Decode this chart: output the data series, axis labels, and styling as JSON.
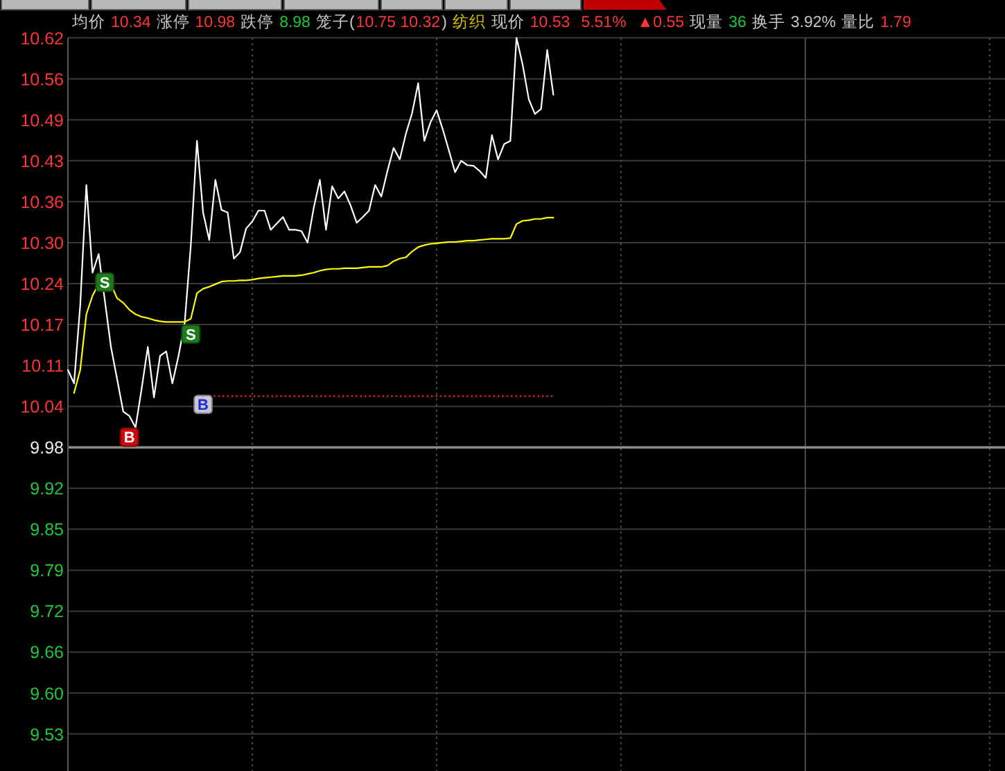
{
  "chart_data": {
    "type": "line",
    "annotations": [
      "均价",
      "10.34",
      "涨停",
      "10.98",
      "跌停",
      "8.98",
      "笼子(",
      "10.75 10.32",
      ")",
      "纺织",
      "现价",
      "10.53",
      "5.51%",
      "▲0.55",
      "现量",
      "36",
      "换手",
      "3.92%",
      "量比",
      "1.79"
    ],
    "categories": [
      null,
      null,
      null,
      null,
      null,
      null,
      null,
      null,
      null,
      null,
      null,
      null,
      null,
      null,
      null,
      null,
      null,
      null,
      null,
      null,
      null,
      null,
      null,
      null,
      null,
      null,
      null,
      null,
      null,
      null,
      null,
      null,
      null,
      null,
      null,
      null,
      null,
      null,
      null,
      null,
      null,
      null,
      null,
      null,
      null,
      null,
      null,
      null,
      null,
      null,
      null,
      null,
      null,
      null,
      null,
      null,
      null,
      null,
      null,
      null,
      null,
      null,
      null,
      null,
      null,
      null,
      null,
      null,
      null,
      null,
      null,
      null,
      null,
      null,
      null,
      null,
      null,
      null,
      null,
      null,
      null,
      null,
      null,
      null,
      null,
      null,
      null,
      null,
      null,
      null,
      null,
      null,
      null,
      null,
      null,
      null,
      null,
      null,
      null,
      null,
      null,
      null,
      null,
      null,
      null,
      null,
      null,
      null,
      null,
      null,
      null,
      null,
      null,
      null,
      null,
      null,
      null,
      null,
      null,
      null,
      null,
      null,
      null,
      null,
      null,
      null,
      null,
      null,
      null,
      null,
      null,
      null,
      null,
      null,
      null,
      null,
      null,
      null,
      null,
      null,
      null,
      null,
      null,
      null,
      null,
      null,
      null,
      null,
      null,
      null,
      null,
      null,
      null
    ],
    "series": [
      {
        "color": "#ffffff",
        "values": [
          10.101,
          10.08,
          10.202,
          10.39,
          10.253,
          10.282,
          10.21,
          10.137,
          10.087,
          10.036,
          10.029,
          10.011,
          10.072,
          10.137,
          10.058,
          10.123,
          10.13,
          10.08,
          10.123,
          10.174,
          10.296,
          10.459,
          10.347,
          10.304,
          10.398,
          10.351,
          10.347,
          10.275,
          10.285,
          10.322,
          10.333,
          10.35,
          10.35,
          10.32,
          10.33,
          10.34,
          10.32,
          10.32,
          10.318,
          10.3,
          10.354,
          10.398,
          10.32,
          10.388,
          10.369,
          10.38,
          10.358,
          10.331,
          10.34,
          10.35,
          10.39,
          10.372,
          10.412,
          10.448,
          10.43,
          10.47,
          10.502,
          10.549,
          10.459,
          10.488,
          10.507,
          10.477,
          10.444,
          10.41,
          10.428,
          10.421,
          10.42,
          10.412,
          10.401,
          10.468,
          10.43,
          10.454,
          10.459,
          10.62,
          10.578,
          10.524,
          10.501,
          10.509,
          10.601,
          10.531,
          null,
          null,
          null,
          null,
          null,
          null,
          null,
          null,
          null,
          null,
          null,
          null,
          null,
          null,
          null,
          null,
          null,
          null,
          null,
          null,
          null,
          null,
          null,
          null,
          null,
          null,
          null,
          null,
          null,
          null,
          null,
          null,
          null,
          null,
          null,
          null,
          null,
          null,
          null,
          null,
          null,
          null,
          null,
          null,
          null,
          null,
          null,
          null,
          null,
          null,
          null,
          null,
          null,
          null,
          null,
          null,
          null,
          null,
          null,
          null,
          null,
          null,
          null,
          null,
          null,
          null,
          null,
          null,
          null,
          null,
          null,
          null,
          null
        ]
      },
      {
        "color": "#ffff00",
        "values": [
          null,
          10.065,
          10.101,
          10.188,
          10.217,
          10.235,
          null,
          10.235,
          10.213,
          10.206,
          10.195,
          10.188,
          10.184,
          10.182,
          10.179,
          10.177,
          10.176,
          10.176,
          10.176,
          10.176,
          10.181,
          10.221,
          10.228,
          10.231,
          10.235,
          10.239,
          10.24,
          10.24,
          10.241,
          10.241,
          10.242,
          10.244,
          10.245,
          10.246,
          10.247,
          10.248,
          10.248,
          10.248,
          10.249,
          10.251,
          10.253,
          10.256,
          10.258,
          10.259,
          10.259,
          10.26,
          10.26,
          10.26,
          10.261,
          10.262,
          10.262,
          10.262,
          10.264,
          10.271,
          10.275,
          10.277,
          10.286,
          10.293,
          10.296,
          10.298,
          10.299,
          10.3,
          10.301,
          10.301,
          10.302,
          10.303,
          10.303,
          10.304,
          10.305,
          10.306,
          10.306,
          10.306,
          10.307,
          10.329,
          10.334,
          10.335,
          10.337,
          10.337,
          10.339,
          10.339,
          null,
          null,
          null,
          null,
          null,
          null,
          null,
          null,
          null,
          null,
          null,
          null,
          null,
          null,
          null,
          null,
          null,
          null,
          null,
          null,
          null,
          null,
          null,
          null,
          null,
          null,
          null,
          null,
          null,
          null,
          null,
          null,
          null,
          null,
          null,
          null,
          null,
          null,
          null,
          null,
          null,
          null,
          null,
          null,
          null,
          null,
          null,
          null,
          null,
          null,
          null,
          null,
          null,
          null,
          null,
          null,
          null,
          null,
          null,
          null,
          null,
          null,
          null,
          null,
          null,
          null,
          null,
          null,
          null,
          null,
          null,
          null,
          null
        ]
      },
      {
        "color": "#ff2020",
        "line_style": "dotted",
        "values": [
          null,
          null,
          null,
          null,
          null,
          null,
          null,
          null,
          null,
          null,
          null,
          null,
          null,
          null,
          null,
          null,
          null,
          null,
          null,
          null,
          null,
          null,
          null,
          10.06,
          10.06,
          10.06,
          10.06,
          10.06,
          10.06,
          10.06,
          10.06,
          10.06,
          10.06,
          10.06,
          10.06,
          10.06,
          10.06,
          10.06,
          10.06,
          10.06,
          10.06,
          10.06,
          10.06,
          10.06,
          10.06,
          10.06,
          10.06,
          10.06,
          10.06,
          10.06,
          10.06,
          10.06,
          10.06,
          10.06,
          10.06,
          10.06,
          10.06,
          10.06,
          10.06,
          10.06,
          10.06,
          10.06,
          10.06,
          10.06,
          10.06,
          10.06,
          10.06,
          10.06,
          10.06,
          10.06,
          10.06,
          10.06,
          10.06,
          10.06,
          10.06,
          10.06,
          10.06,
          10.06,
          10.06,
          10.06,
          null,
          null,
          null,
          null,
          null,
          null,
          null,
          null,
          null,
          null,
          null,
          null,
          null,
          null,
          null,
          null,
          null,
          null,
          null,
          null,
          null,
          null,
          null,
          null,
          null,
          null,
          null,
          null,
          null,
          null,
          null,
          null,
          null,
          null,
          null,
          null,
          null,
          null,
          null,
          null,
          null,
          null,
          null,
          null,
          null,
          null,
          null,
          null,
          null,
          null,
          null,
          null,
          null,
          null,
          null,
          null,
          null,
          null,
          null,
          null,
          null,
          null,
          null,
          null,
          null,
          null,
          null,
          null,
          null,
          null,
          null,
          null,
          null
        ]
      },
      {
        "type": "scatter",
        "name": "S",
        "color": "#1c7c1c",
        "marker": "square",
        "values": [
          null,
          null,
          null,
          null,
          null,
          null,
          10.238,
          null,
          null,
          null,
          null,
          null,
          null,
          null,
          null,
          null,
          null,
          null,
          null,
          null,
          10.157,
          null,
          null,
          null,
          null,
          null,
          null,
          null,
          null,
          null,
          null,
          null,
          null,
          null,
          null,
          null,
          null,
          null,
          null,
          null,
          null,
          null,
          null,
          null,
          null,
          null,
          null,
          null,
          null,
          null,
          null,
          null,
          null,
          null,
          null,
          null,
          null,
          null,
          null,
          null,
          null,
          null,
          null,
          null,
          null,
          null,
          null,
          null,
          null,
          null,
          null,
          null,
          null,
          null,
          null,
          null,
          null,
          null,
          null,
          null,
          null,
          null,
          null,
          null,
          null,
          null,
          null,
          null,
          null,
          null,
          null,
          null,
          null,
          null,
          null,
          null,
          null,
          null,
          null,
          null,
          null,
          null,
          null,
          null,
          null,
          null,
          null,
          null,
          null,
          null,
          null,
          null,
          null,
          null,
          null,
          null,
          null,
          null,
          null,
          null,
          null,
          null,
          null,
          null,
          null,
          null,
          null,
          null,
          null,
          null,
          null,
          null,
          null,
          null,
          null,
          null,
          null,
          null,
          null,
          null,
          null,
          null,
          null,
          null,
          null,
          null,
          null,
          null,
          null,
          null,
          null,
          null,
          null
        ]
      },
      {
        "type": "scatter",
        "name": "B",
        "color": "#cc0a0a",
        "marker": "square",
        "values": [
          null,
          null,
          null,
          null,
          null,
          null,
          null,
          null,
          null,
          null,
          9.996,
          null,
          null,
          null,
          null,
          null,
          null,
          null,
          null,
          null,
          null,
          null,
          null,
          null,
          null,
          null,
          null,
          null,
          null,
          null,
          null,
          null,
          null,
          null,
          null,
          null,
          null,
          null,
          null,
          null,
          null,
          null,
          null,
          null,
          null,
          null,
          null,
          null,
          null,
          null,
          null,
          null,
          null,
          null,
          null,
          null,
          null,
          null,
          null,
          null,
          null,
          null,
          null,
          null,
          null,
          null,
          null,
          null,
          null,
          null,
          null,
          null,
          null,
          null,
          null,
          null,
          null,
          null,
          null,
          null,
          null,
          null,
          null,
          null,
          null,
          null,
          null,
          null,
          null,
          null,
          null,
          null,
          null,
          null,
          null,
          null,
          null,
          null,
          null,
          null,
          null,
          null,
          null,
          null,
          null,
          null,
          null,
          null,
          null,
          null,
          null,
          null,
          null,
          null,
          null,
          null,
          null,
          null,
          null,
          null,
          null,
          null,
          null,
          null,
          null,
          null,
          null,
          null,
          null,
          null,
          null,
          null,
          null,
          null,
          null,
          null,
          null,
          null,
          null,
          null,
          null,
          null,
          null,
          null,
          null,
          null,
          null,
          null,
          null,
          null,
          null,
          null,
          null
        ]
      },
      {
        "type": "scatter",
        "name": "B",
        "color": "#c8c8d2",
        "marker": "square",
        "values": [
          null,
          null,
          null,
          null,
          null,
          null,
          null,
          null,
          null,
          null,
          null,
          null,
          null,
          null,
          null,
          null,
          null,
          null,
          null,
          null,
          null,
          null,
          10.047,
          null,
          null,
          null,
          null,
          null,
          null,
          null,
          null,
          null,
          null,
          null,
          null,
          null,
          null,
          null,
          null,
          null,
          null,
          null,
          null,
          null,
          null,
          null,
          null,
          null,
          null,
          null,
          null,
          null,
          null,
          null,
          null,
          null,
          null,
          null,
          null,
          null,
          null,
          null,
          null,
          null,
          null,
          null,
          null,
          null,
          null,
          null,
          null,
          null,
          null,
          null,
          null,
          null,
          null,
          null,
          null,
          null,
          null,
          null,
          null,
          null,
          null,
          null,
          null,
          null,
          null,
          null,
          null,
          null,
          null,
          null,
          null,
          null,
          null,
          null,
          null,
          null,
          null,
          null,
          null,
          null,
          null,
          null,
          null,
          null,
          null,
          null,
          null,
          null,
          null,
          null,
          null,
          null,
          null,
          null,
          null,
          null,
          null,
          null,
          null,
          null,
          null,
          null,
          null,
          null,
          null,
          null,
          null,
          null,
          null,
          null,
          null,
          null,
          null,
          null,
          null,
          null,
          null,
          null,
          null,
          null,
          null,
          null,
          null,
          null,
          null,
          null,
          null,
          null,
          null
        ]
      }
    ],
    "ylim": [
      9.48,
      10.62
    ],
    "yticks": [
      {
        "value": 9.532,
        "label": "9.53"
      },
      {
        "value": 9.596,
        "label": "9.60"
      },
      9.66,
      {
        "value": 9.724,
        "label": "9.72"
      },
      {
        "value": 9.788,
        "label": "9.79"
      },
      {
        "value": 9.852,
        "label": "9.85"
      },
      {
        "value": 9.916,
        "label": "9.92"
      },
      9.98,
      {
        "value": 10.044,
        "label": "10.04"
      },
      {
        "value": 10.108,
        "label": "10.11"
      },
      {
        "value": 10.172,
        "label": "10.17"
      },
      {
        "value": 10.236,
        "label": "10.24"
      },
      {
        "value": 10.3,
        "label": "10.30"
      },
      {
        "value": 10.364,
        "label": "10.36"
      },
      {
        "value": 10.428,
        "label": "10.43"
      },
      {
        "value": 10.492,
        "label": "10.49"
      },
      {
        "value": 10.556,
        "label": "10.56"
      },
      10.62
    ],
    "ref_lines": [
      {
        "axis": "y",
        "value": 9.98,
        "color": "#8c8c8c"
      }
    ],
    "grid": true,
    "tick_labels": "y"
  }
}
